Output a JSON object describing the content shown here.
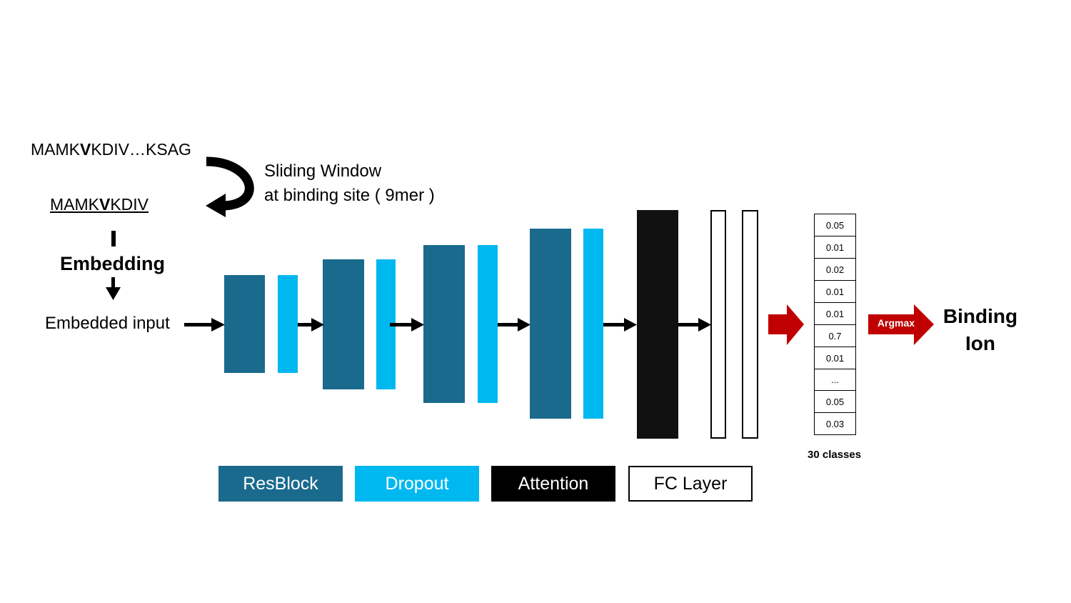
{
  "input": {
    "full_sequence_pre": "MAMK",
    "full_sequence_bold": "V",
    "full_sequence_post": "KDIV…KSAG",
    "window_pre": "MAMK",
    "window_bold": "V",
    "window_post": "KDIV",
    "sliding_window_line1": "Sliding Window",
    "sliding_window_line2": "at binding site ( 9mer )",
    "embedding_label": "Embedding",
    "embedded_input_label": "Embedded input"
  },
  "colors": {
    "resblock": "#1a6a8d",
    "dropout": "#00b8f0",
    "attention": "#111111",
    "fc_layer": "#ffffff",
    "output_arrow": "#c00000"
  },
  "output": {
    "probabilities": [
      "0.05",
      "0.01",
      "0.02",
      "0.01",
      "0.01",
      "0.7",
      "0.01",
      "...",
      "0.05",
      "0.03"
    ],
    "classes_label": "30 classes",
    "argmax_label": "Argmax",
    "result_line1": "Binding",
    "result_line2": "Ion"
  },
  "legend": {
    "resblock": "ResBlock",
    "dropout": "Dropout",
    "attention": "Attention",
    "fc_layer": "FC Layer"
  }
}
